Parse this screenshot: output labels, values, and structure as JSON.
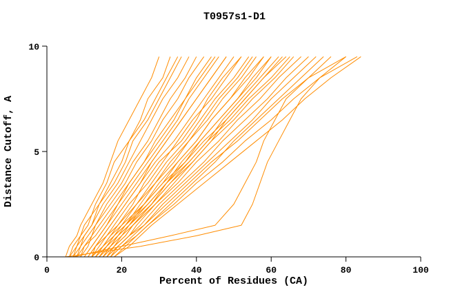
{
  "chart_data": {
    "type": "line",
    "title": "T0957s1-D1",
    "xlabel": "Percent of Residues (CA)",
    "ylabel": "Distance Cutoff, A",
    "xlim": [
      0,
      100
    ],
    "ylim": [
      0,
      10
    ],
    "x_ticks": [
      0,
      20,
      40,
      60,
      80,
      100
    ],
    "y_ticks": [
      0,
      5,
      10
    ],
    "grid": false,
    "legend": "none",
    "line_color": "#FF8C00",
    "axis_color": "#000000",
    "series_format": "each series array lists Percent of Residues (CA) reached at the shared Distance Cutoff values in y_levels",
    "y_levels": [
      0,
      0.5,
      1,
      1.5,
      2.5,
      3.5,
      4.5,
      5.5,
      6.5,
      7.5,
      8.5,
      9.5
    ],
    "series": [
      [
        5,
        6,
        8,
        9,
        12,
        15,
        17,
        19,
        22,
        25,
        28,
        30
      ],
      [
        6,
        7,
        9,
        11,
        13,
        16,
        18,
        22,
        25,
        27,
        31,
        33
      ],
      [
        6,
        8,
        9,
        10,
        14,
        17,
        20,
        22,
        26,
        29,
        32,
        35
      ],
      [
        7,
        8,
        10,
        12,
        14,
        18,
        21,
        23,
        27,
        30,
        33,
        36
      ],
      [
        7,
        9,
        10,
        12,
        15,
        19,
        22,
        25,
        28,
        31,
        35,
        38
      ],
      [
        8,
        9,
        11,
        13,
        16,
        20,
        23,
        27,
        30,
        33,
        37,
        40
      ],
      [
        8,
        10,
        12,
        13,
        17,
        21,
        24,
        28,
        31,
        35,
        38,
        42
      ],
      [
        9,
        11,
        12,
        14,
        18,
        22,
        26,
        29,
        33,
        37,
        40,
        44
      ],
      [
        9,
        10,
        13,
        15,
        19,
        22,
        26,
        30,
        34,
        37,
        41,
        45
      ],
      [
        10,
        12,
        14,
        16,
        19,
        23,
        27,
        31,
        35,
        38,
        42,
        46
      ],
      [
        10,
        12,
        14,
        16,
        20,
        24,
        28,
        32,
        36,
        40,
        44,
        48
      ],
      [
        11,
        13,
        15,
        17,
        21,
        25,
        28,
        32,
        36,
        40,
        44,
        48
      ],
      [
        11,
        13,
        15,
        17,
        21,
        25,
        29,
        34,
        38,
        42,
        46,
        50
      ],
      [
        12,
        14,
        16,
        18,
        22,
        27,
        31,
        35,
        39,
        44,
        48,
        52
      ],
      [
        12,
        13,
        16,
        19,
        23,
        26,
        30,
        36,
        40,
        43,
        47,
        52
      ],
      [
        13,
        15,
        17,
        19,
        24,
        28,
        32,
        37,
        41,
        45,
        50,
        54
      ],
      [
        13,
        15,
        18,
        20,
        24,
        29,
        33,
        38,
        42,
        46,
        51,
        55
      ],
      [
        14,
        16,
        18,
        21,
        25,
        29,
        34,
        38,
        43,
        47,
        52,
        56
      ],
      [
        14,
        16,
        19,
        21,
        26,
        30,
        35,
        40,
        44,
        49,
        53,
        58
      ],
      [
        15,
        17,
        19,
        22,
        26,
        31,
        35,
        40,
        44,
        49,
        54,
        58
      ],
      [
        15,
        17,
        20,
        22,
        27,
        32,
        36,
        41,
        46,
        51,
        55,
        60
      ],
      [
        16,
        18,
        20,
        23,
        28,
        32,
        37,
        41,
        46,
        51,
        56,
        60
      ],
      [
        16,
        18,
        21,
        23,
        28,
        33,
        38,
        43,
        47,
        52,
        57,
        62
      ],
      [
        17,
        19,
        22,
        24,
        29,
        34,
        39,
        44,
        48,
        53,
        58,
        63
      ],
      [
        12,
        15,
        17,
        20,
        26,
        31,
        37,
        42,
        48,
        53,
        58,
        64
      ],
      [
        13,
        16,
        18,
        21,
        27,
        32,
        38,
        43,
        49,
        54,
        60,
        65
      ],
      [
        14,
        17,
        19,
        22,
        28,
        33,
        39,
        44,
        50,
        55,
        61,
        66
      ],
      [
        15,
        18,
        21,
        23,
        29,
        35,
        40,
        46,
        51,
        57,
        62,
        68
      ],
      [
        16,
        19,
        22,
        25,
        30,
        36,
        42,
        47,
        53,
        59,
        64,
        70
      ],
      [
        17,
        20,
        23,
        26,
        31,
        37,
        43,
        49,
        55,
        60,
        66,
        72
      ],
      [
        18,
        21,
        24,
        27,
        33,
        39,
        45,
        50,
        56,
        62,
        68,
        74
      ],
      [
        16,
        19,
        22,
        26,
        32,
        38,
        44,
        51,
        57,
        63,
        70,
        76
      ],
      [
        17,
        20,
        24,
        27,
        34,
        40,
        47,
        53,
        60,
        66,
        73,
        80
      ],
      [
        18,
        22,
        25,
        28,
        35,
        42,
        49,
        56,
        63,
        69,
        76,
        84
      ],
      [
        5,
        25,
        40,
        52,
        55,
        57,
        59,
        62,
        65,
        68,
        73,
        83
      ],
      [
        7,
        20,
        33,
        45,
        50,
        53,
        56,
        58,
        61,
        64,
        70,
        80
      ]
    ]
  }
}
